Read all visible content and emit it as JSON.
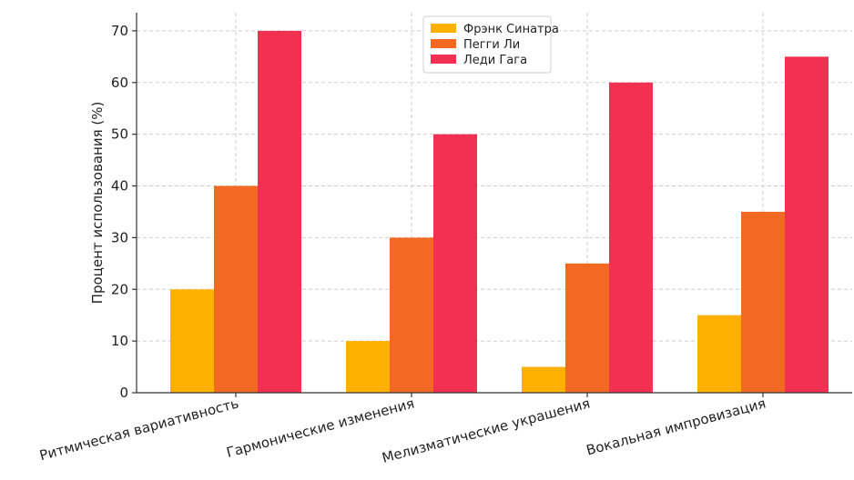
{
  "chart_data": {
    "type": "bar",
    "title": "",
    "xlabel": "",
    "ylabel": "Процент использования (%)",
    "categories": [
      "Ритмическая вариативность",
      "Гармонические изменения",
      "Мелизматические украшения",
      "Вокальная импровизация"
    ],
    "series": [
      {
        "name": "Фрэнк Синатра",
        "values": [
          20,
          10,
          5,
          15
        ],
        "color": "#FFB000"
      },
      {
        "name": "Пегги Ли",
        "values": [
          40,
          30,
          25,
          35
        ],
        "color": "#F26A21"
      },
      {
        "name": "Леди Гага",
        "values": [
          70,
          50,
          60,
          65
        ],
        "color": "#F23152"
      }
    ],
    "ylim": [
      0,
      73.5
    ],
    "yticks": [
      0,
      10,
      20,
      30,
      40,
      50,
      60,
      70
    ],
    "grid": true,
    "legend_position": "top-center"
  }
}
